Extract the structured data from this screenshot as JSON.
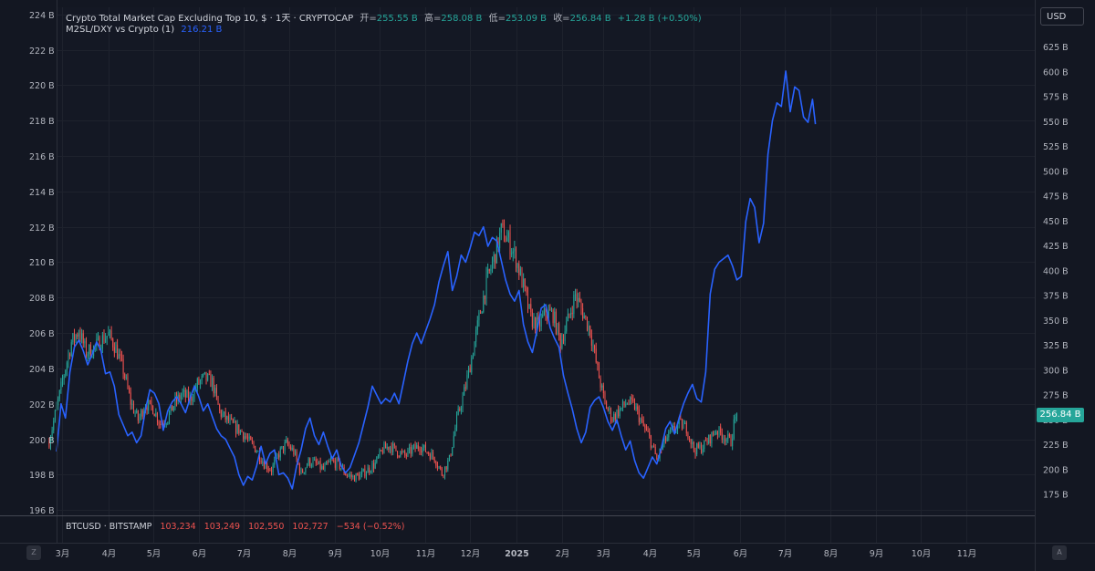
{
  "legend": {
    "title": "Crypto Total Market Cap Excluding Top 10, $ · 1天 · CRYPTOCAP",
    "open_label": "开=",
    "open_value": "255.55 B",
    "high_label": "高=",
    "high_value": "258.08 B",
    "low_label": "低=",
    "low_value": "253.09 B",
    "close_label": "收=",
    "close_value": "256.84 B",
    "change": "+1.28 B (+0.50%)",
    "indicator_name": "M2SL/DXY vs Crypto (1)",
    "indicator_value": "216.21 B"
  },
  "currency_button": "USD",
  "last_price_label": "256.84 B",
  "btc_pane": {
    "symbol": "BTCUSD · BITSTAMP",
    "open": "103,234",
    "high": "103,249",
    "low": "102,550",
    "close": "102,727",
    "change": "−534 (−0.52%)"
  },
  "corner_left": "Z",
  "corner_right": "A",
  "colors": {
    "background": "#131722",
    "up": "#26a69a",
    "down": "#ef5350",
    "indicator": "#2962ff",
    "grid": "#1e222d"
  },
  "chart_data": {
    "type": "line",
    "left_axis": {
      "ticks": [
        224,
        222,
        220,
        218,
        216,
        214,
        212,
        210,
        208,
        206,
        204,
        202,
        200,
        198,
        196
      ],
      "ylim": [
        195.7,
        224.4
      ],
      "suffix": " B"
    },
    "right_axis": {
      "ticks": [
        650,
        625,
        600,
        575,
        550,
        525,
        500,
        475,
        450,
        425,
        400,
        375,
        350,
        325,
        300,
        275,
        250,
        225,
        200,
        175
      ],
      "ylim": [
        154,
        665
      ],
      "suffix": " B"
    },
    "x_ticks": [
      "3月",
      "4月",
      "5月",
      "6月",
      "7月",
      "8月",
      "9月",
      "10月",
      "11月",
      "12月",
      "2025",
      "2月",
      "3月",
      "4月",
      "5月",
      "6月",
      "7月",
      "8月",
      "9月",
      "10月",
      "11月"
    ],
    "x_tick_days": [
      29,
      60,
      90,
      121,
      151,
      182,
      213,
      243,
      274,
      304,
      335,
      366,
      394,
      425,
      455,
      486,
      516,
      547,
      578,
      608,
      639
    ],
    "xlim": [
      25,
      685
    ],
    "series": [
      {
        "name": "Crypto Total Market Cap Excluding Top 10",
        "kind": "candlestick",
        "axis": "right",
        "points": [
          [
            20,
            228
          ],
          [
            25,
            262
          ],
          [
            30,
            296
          ],
          [
            35,
            328
          ],
          [
            40,
            340
          ],
          [
            45,
            318
          ],
          [
            50,
            322
          ],
          [
            55,
            330
          ],
          [
            60,
            336
          ],
          [
            65,
            322
          ],
          [
            70,
            300
          ],
          [
            75,
            268
          ],
          [
            80,
            250
          ],
          [
            85,
            266
          ],
          [
            90,
            262
          ],
          [
            95,
            246
          ],
          [
            100,
            252
          ],
          [
            105,
            268
          ],
          [
            110,
            276
          ],
          [
            115,
            270
          ],
          [
            120,
            286
          ],
          [
            125,
            292
          ],
          [
            130,
            288
          ],
          [
            135,
            258
          ],
          [
            140,
            250
          ],
          [
            145,
            243
          ],
          [
            150,
            238
          ],
          [
            155,
            228
          ],
          [
            160,
            220
          ],
          [
            165,
            206
          ],
          [
            170,
            200
          ],
          [
            175,
            216
          ],
          [
            180,
            226
          ],
          [
            185,
            218
          ],
          [
            190,
            196
          ],
          [
            195,
            208
          ],
          [
            200,
            206
          ],
          [
            205,
            200
          ],
          [
            210,
            208
          ],
          [
            215,
            206
          ],
          [
            220,
            196
          ],
          [
            225,
            192
          ],
          [
            230,
            194
          ],
          [
            235,
            200
          ],
          [
            240,
            206
          ],
          [
            245,
            220
          ],
          [
            250,
            224
          ],
          [
            255,
            218
          ],
          [
            260,
            214
          ],
          [
            265,
            220
          ],
          [
            270,
            224
          ],
          [
            275,
            218
          ],
          [
            280,
            212
          ],
          [
            285,
            196
          ],
          [
            290,
            210
          ],
          [
            295,
            250
          ],
          [
            300,
            278
          ],
          [
            305,
            312
          ],
          [
            310,
            352
          ],
          [
            315,
            388
          ],
          [
            320,
            412
          ],
          [
            325,
            440
          ],
          [
            330,
            430
          ],
          [
            335,
            412
          ],
          [
            340,
            384
          ],
          [
            345,
            352
          ],
          [
            350,
            344
          ],
          [
            355,
            358
          ],
          [
            360,
            356
          ],
          [
            365,
            328
          ],
          [
            370,
            350
          ],
          [
            375,
            376
          ],
          [
            380,
            358
          ],
          [
            385,
            340
          ],
          [
            390,
            300
          ],
          [
            395,
            266
          ],
          [
            400,
            252
          ],
          [
            405,
            260
          ],
          [
            410,
            268
          ],
          [
            415,
            264
          ],
          [
            420,
            246
          ],
          [
            425,
            232
          ],
          [
            430,
            210
          ],
          [
            435,
            228
          ],
          [
            440,
            238
          ],
          [
            445,
            246
          ],
          [
            450,
            242
          ],
          [
            455,
            220
          ],
          [
            460,
            222
          ],
          [
            465,
            230
          ],
          [
            470,
            240
          ],
          [
            475,
            234
          ],
          [
            480,
            228
          ],
          [
            482,
            246
          ],
          [
            484,
            256.84
          ]
        ]
      },
      {
        "name": "M2SL/DXY vs Crypto (1)",
        "kind": "line",
        "axis": "left",
        "points": [
          [
            25,
            199.3
          ],
          [
            28,
            202.0
          ],
          [
            31,
            201.2
          ],
          [
            34,
            203.8
          ],
          [
            37,
            205.2
          ],
          [
            40,
            205.6
          ],
          [
            43,
            205.0
          ],
          [
            46,
            204.2
          ],
          [
            49,
            204.8
          ],
          [
            52,
            205.5
          ],
          [
            55,
            205.0
          ],
          [
            58,
            203.7
          ],
          [
            61,
            203.8
          ],
          [
            64,
            203.0
          ],
          [
            67,
            201.4
          ],
          [
            70,
            200.8
          ],
          [
            73,
            200.2
          ],
          [
            76,
            200.4
          ],
          [
            79,
            199.8
          ],
          [
            82,
            200.2
          ],
          [
            85,
            201.7
          ],
          [
            88,
            202.8
          ],
          [
            91,
            202.6
          ],
          [
            94,
            202.0
          ],
          [
            97,
            200.5
          ],
          [
            100,
            201.6
          ],
          [
            103,
            202.1
          ],
          [
            106,
            202.4
          ],
          [
            109,
            202.0
          ],
          [
            112,
            201.5
          ],
          [
            115,
            202.3
          ],
          [
            118,
            203.0
          ],
          [
            121,
            202.4
          ],
          [
            124,
            201.6
          ],
          [
            127,
            202.0
          ],
          [
            130,
            201.3
          ],
          [
            133,
            200.6
          ],
          [
            136,
            200.2
          ],
          [
            139,
            200.0
          ],
          [
            142,
            199.5
          ],
          [
            145,
            199.0
          ],
          [
            148,
            198.0
          ],
          [
            151,
            197.4
          ],
          [
            154,
            197.9
          ],
          [
            157,
            197.7
          ],
          [
            160,
            198.5
          ],
          [
            163,
            199.6
          ],
          [
            166,
            198.6
          ],
          [
            169,
            199.2
          ],
          [
            172,
            199.4
          ],
          [
            175,
            198.0
          ],
          [
            178,
            198.1
          ],
          [
            181,
            197.8
          ],
          [
            184,
            197.2
          ],
          [
            187,
            198.5
          ],
          [
            190,
            199.4
          ],
          [
            193,
            200.6
          ],
          [
            196,
            201.2
          ],
          [
            199,
            200.2
          ],
          [
            202,
            199.7
          ],
          [
            205,
            200.4
          ],
          [
            208,
            199.6
          ],
          [
            211,
            198.9
          ],
          [
            214,
            199.4
          ],
          [
            217,
            198.5
          ],
          [
            220,
            198.1
          ],
          [
            223,
            198.4
          ],
          [
            226,
            199.1
          ],
          [
            229,
            199.8
          ],
          [
            232,
            200.8
          ],
          [
            235,
            201.8
          ],
          [
            238,
            203.0
          ],
          [
            241,
            202.5
          ],
          [
            244,
            202.0
          ],
          [
            247,
            202.3
          ],
          [
            250,
            202.1
          ],
          [
            253,
            202.6
          ],
          [
            256,
            202.0
          ],
          [
            259,
            203.2
          ],
          [
            262,
            204.4
          ],
          [
            265,
            205.4
          ],
          [
            268,
            206.0
          ],
          [
            271,
            205.4
          ],
          [
            274,
            206.1
          ],
          [
            277,
            206.8
          ],
          [
            280,
            207.6
          ],
          [
            283,
            208.9
          ],
          [
            286,
            209.8
          ],
          [
            289,
            210.6
          ],
          [
            292,
            208.4
          ],
          [
            295,
            209.2
          ],
          [
            298,
            210.4
          ],
          [
            301,
            210.0
          ],
          [
            304,
            210.8
          ],
          [
            307,
            211.7
          ],
          [
            310,
            211.5
          ],
          [
            313,
            212.0
          ],
          [
            316,
            210.9
          ],
          [
            319,
            211.4
          ],
          [
            322,
            211.2
          ],
          [
            325,
            210.1
          ],
          [
            328,
            209.0
          ],
          [
            331,
            208.2
          ],
          [
            334,
            207.8
          ],
          [
            337,
            208.4
          ],
          [
            340,
            206.5
          ],
          [
            343,
            205.5
          ],
          [
            346,
            204.9
          ],
          [
            349,
            206.1
          ],
          [
            352,
            207.4
          ],
          [
            355,
            207.6
          ],
          [
            358,
            206.3
          ],
          [
            361,
            205.7
          ],
          [
            364,
            205.2
          ],
          [
            367,
            203.6
          ],
          [
            370,
            202.6
          ],
          [
            373,
            201.7
          ],
          [
            376,
            200.6
          ],
          [
            379,
            199.8
          ],
          [
            382,
            200.4
          ],
          [
            385,
            201.8
          ],
          [
            388,
            202.2
          ],
          [
            391,
            202.4
          ],
          [
            394,
            201.8
          ],
          [
            397,
            201.0
          ],
          [
            400,
            200.5
          ],
          [
            403,
            201.1
          ],
          [
            406,
            200.2
          ],
          [
            409,
            199.4
          ],
          [
            412,
            199.9
          ],
          [
            415,
            198.8
          ],
          [
            418,
            198.1
          ],
          [
            421,
            197.8
          ],
          [
            424,
            198.4
          ],
          [
            427,
            199.0
          ],
          [
            430,
            198.6
          ],
          [
            433,
            199.5
          ],
          [
            436,
            200.6
          ],
          [
            439,
            201.0
          ],
          [
            442,
            200.3
          ],
          [
            445,
            201.2
          ],
          [
            448,
            202.0
          ],
          [
            451,
            202.6
          ],
          [
            454,
            203.1
          ],
          [
            457,
            202.3
          ],
          [
            460,
            202.1
          ],
          [
            463,
            203.8
          ],
          [
            466,
            208.2
          ],
          [
            469,
            209.6
          ],
          [
            472,
            210.0
          ],
          [
            475,
            210.2
          ],
          [
            478,
            210.4
          ],
          [
            481,
            209.8
          ],
          [
            484,
            209.0
          ],
          [
            487,
            209.2
          ],
          [
            490,
            212.3
          ],
          [
            493,
            213.6
          ],
          [
            496,
            213.1
          ],
          [
            499,
            211.1
          ],
          [
            502,
            212.2
          ],
          [
            505,
            216.1
          ],
          [
            508,
            218.0
          ],
          [
            511,
            219.0
          ],
          [
            514,
            218.8
          ],
          [
            517,
            220.8
          ],
          [
            520,
            218.5
          ],
          [
            523,
            219.9
          ],
          [
            526,
            219.7
          ],
          [
            529,
            218.2
          ],
          [
            532,
            217.9
          ],
          [
            535,
            219.2
          ],
          [
            537,
            217.8
          ]
        ]
      }
    ]
  }
}
